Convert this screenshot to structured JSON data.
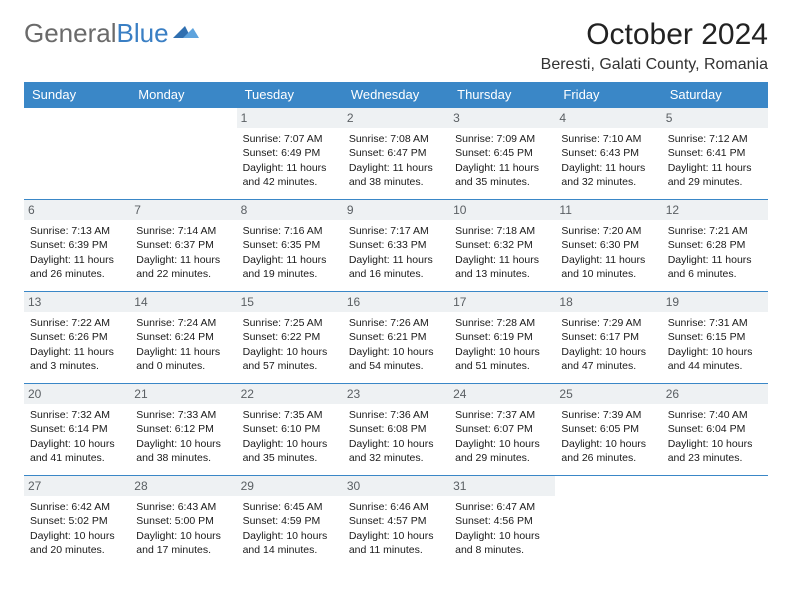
{
  "brand": {
    "part1": "General",
    "part2": "Blue"
  },
  "title": "October 2024",
  "location": "Beresti, Galati County, Romania",
  "colors": {
    "header_bg": "#3a87c7",
    "header_text": "#ffffff",
    "daynum_bg": "#eef1f3",
    "daynum_text": "#5a5f63",
    "rule": "#3a87c7",
    "logo_gray": "#6a6a6a",
    "logo_blue": "#3a7fc4"
  },
  "typography": {
    "title_fontsize": 30,
    "location_fontsize": 16,
    "dayheader_fontsize": 13,
    "cell_fontsize": 10.5
  },
  "day_headers": [
    "Sunday",
    "Monday",
    "Tuesday",
    "Wednesday",
    "Thursday",
    "Friday",
    "Saturday"
  ],
  "weeks": [
    [
      null,
      null,
      {
        "n": "1",
        "sr": "Sunrise: 7:07 AM",
        "ss": "Sunset: 6:49 PM",
        "dl": "Daylight: 11 hours and 42 minutes."
      },
      {
        "n": "2",
        "sr": "Sunrise: 7:08 AM",
        "ss": "Sunset: 6:47 PM",
        "dl": "Daylight: 11 hours and 38 minutes."
      },
      {
        "n": "3",
        "sr": "Sunrise: 7:09 AM",
        "ss": "Sunset: 6:45 PM",
        "dl": "Daylight: 11 hours and 35 minutes."
      },
      {
        "n": "4",
        "sr": "Sunrise: 7:10 AM",
        "ss": "Sunset: 6:43 PM",
        "dl": "Daylight: 11 hours and 32 minutes."
      },
      {
        "n": "5",
        "sr": "Sunrise: 7:12 AM",
        "ss": "Sunset: 6:41 PM",
        "dl": "Daylight: 11 hours and 29 minutes."
      }
    ],
    [
      {
        "n": "6",
        "sr": "Sunrise: 7:13 AM",
        "ss": "Sunset: 6:39 PM",
        "dl": "Daylight: 11 hours and 26 minutes."
      },
      {
        "n": "7",
        "sr": "Sunrise: 7:14 AM",
        "ss": "Sunset: 6:37 PM",
        "dl": "Daylight: 11 hours and 22 minutes."
      },
      {
        "n": "8",
        "sr": "Sunrise: 7:16 AM",
        "ss": "Sunset: 6:35 PM",
        "dl": "Daylight: 11 hours and 19 minutes."
      },
      {
        "n": "9",
        "sr": "Sunrise: 7:17 AM",
        "ss": "Sunset: 6:33 PM",
        "dl": "Daylight: 11 hours and 16 minutes."
      },
      {
        "n": "10",
        "sr": "Sunrise: 7:18 AM",
        "ss": "Sunset: 6:32 PM",
        "dl": "Daylight: 11 hours and 13 minutes."
      },
      {
        "n": "11",
        "sr": "Sunrise: 7:20 AM",
        "ss": "Sunset: 6:30 PM",
        "dl": "Daylight: 11 hours and 10 minutes."
      },
      {
        "n": "12",
        "sr": "Sunrise: 7:21 AM",
        "ss": "Sunset: 6:28 PM",
        "dl": "Daylight: 11 hours and 6 minutes."
      }
    ],
    [
      {
        "n": "13",
        "sr": "Sunrise: 7:22 AM",
        "ss": "Sunset: 6:26 PM",
        "dl": "Daylight: 11 hours and 3 minutes."
      },
      {
        "n": "14",
        "sr": "Sunrise: 7:24 AM",
        "ss": "Sunset: 6:24 PM",
        "dl": "Daylight: 11 hours and 0 minutes."
      },
      {
        "n": "15",
        "sr": "Sunrise: 7:25 AM",
        "ss": "Sunset: 6:22 PM",
        "dl": "Daylight: 10 hours and 57 minutes."
      },
      {
        "n": "16",
        "sr": "Sunrise: 7:26 AM",
        "ss": "Sunset: 6:21 PM",
        "dl": "Daylight: 10 hours and 54 minutes."
      },
      {
        "n": "17",
        "sr": "Sunrise: 7:28 AM",
        "ss": "Sunset: 6:19 PM",
        "dl": "Daylight: 10 hours and 51 minutes."
      },
      {
        "n": "18",
        "sr": "Sunrise: 7:29 AM",
        "ss": "Sunset: 6:17 PM",
        "dl": "Daylight: 10 hours and 47 minutes."
      },
      {
        "n": "19",
        "sr": "Sunrise: 7:31 AM",
        "ss": "Sunset: 6:15 PM",
        "dl": "Daylight: 10 hours and 44 minutes."
      }
    ],
    [
      {
        "n": "20",
        "sr": "Sunrise: 7:32 AM",
        "ss": "Sunset: 6:14 PM",
        "dl": "Daylight: 10 hours and 41 minutes."
      },
      {
        "n": "21",
        "sr": "Sunrise: 7:33 AM",
        "ss": "Sunset: 6:12 PM",
        "dl": "Daylight: 10 hours and 38 minutes."
      },
      {
        "n": "22",
        "sr": "Sunrise: 7:35 AM",
        "ss": "Sunset: 6:10 PM",
        "dl": "Daylight: 10 hours and 35 minutes."
      },
      {
        "n": "23",
        "sr": "Sunrise: 7:36 AM",
        "ss": "Sunset: 6:08 PM",
        "dl": "Daylight: 10 hours and 32 minutes."
      },
      {
        "n": "24",
        "sr": "Sunrise: 7:37 AM",
        "ss": "Sunset: 6:07 PM",
        "dl": "Daylight: 10 hours and 29 minutes."
      },
      {
        "n": "25",
        "sr": "Sunrise: 7:39 AM",
        "ss": "Sunset: 6:05 PM",
        "dl": "Daylight: 10 hours and 26 minutes."
      },
      {
        "n": "26",
        "sr": "Sunrise: 7:40 AM",
        "ss": "Sunset: 6:04 PM",
        "dl": "Daylight: 10 hours and 23 minutes."
      }
    ],
    [
      {
        "n": "27",
        "sr": "Sunrise: 6:42 AM",
        "ss": "Sunset: 5:02 PM",
        "dl": "Daylight: 10 hours and 20 minutes."
      },
      {
        "n": "28",
        "sr": "Sunrise: 6:43 AM",
        "ss": "Sunset: 5:00 PM",
        "dl": "Daylight: 10 hours and 17 minutes."
      },
      {
        "n": "29",
        "sr": "Sunrise: 6:45 AM",
        "ss": "Sunset: 4:59 PM",
        "dl": "Daylight: 10 hours and 14 minutes."
      },
      {
        "n": "30",
        "sr": "Sunrise: 6:46 AM",
        "ss": "Sunset: 4:57 PM",
        "dl": "Daylight: 10 hours and 11 minutes."
      },
      {
        "n": "31",
        "sr": "Sunrise: 6:47 AM",
        "ss": "Sunset: 4:56 PM",
        "dl": "Daylight: 10 hours and 8 minutes."
      },
      null,
      null
    ]
  ]
}
